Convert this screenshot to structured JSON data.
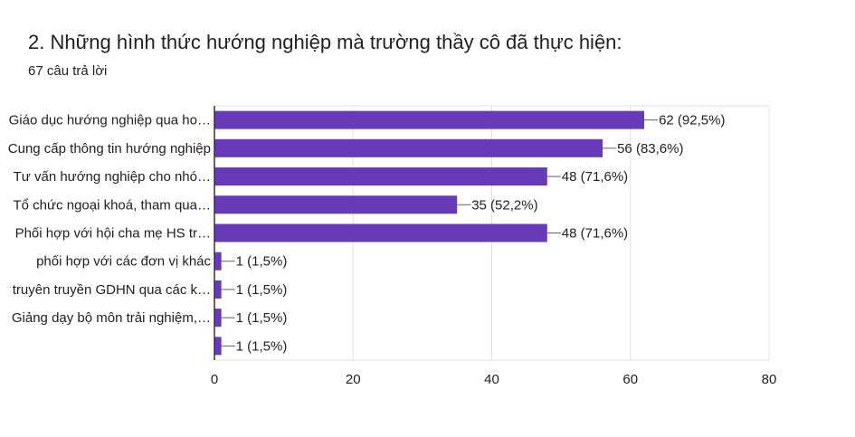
{
  "header": {
    "title": "2. Những hình thức hướng nghiệp mà trường thầy cô đã thực hiện:",
    "response_count": "67 câu trả lời"
  },
  "colors": {
    "bar": "#673ab7",
    "grid": "#e0e0e0",
    "axis": "#9e9e9e"
  },
  "chart_data": {
    "type": "bar",
    "orientation": "horizontal",
    "categories": [
      "Giáo dục hướng nghiệp qua ho…",
      "Cung cấp thông tin hướng nghiệp",
      "Tư vấn hướng nghiệp cho nhó…",
      "Tổ chức ngoại khoá, tham qua…",
      "Phối hợp với hội cha mẹ HS tr…",
      "phối hợp với các đơn vị khác",
      "truyên truyền GDHN qua các k…",
      "Giảng dạy bộ môn trải nghiệm,…",
      ""
    ],
    "values": [
      62,
      56,
      48,
      35,
      48,
      1,
      1,
      1,
      1
    ],
    "data_labels": [
      "62 (92,5%)",
      "56 (83,6%)",
      "48 (71,6%)",
      "35 (52,2%)",
      "48 (71,6%)",
      "1 (1,5%)",
      "1 (1,5%)",
      "1 (1,5%)",
      "1 (1,5%)"
    ],
    "xlim": [
      0,
      80
    ],
    "xticks": [
      0,
      20,
      40,
      60,
      80
    ],
    "grid": true
  }
}
